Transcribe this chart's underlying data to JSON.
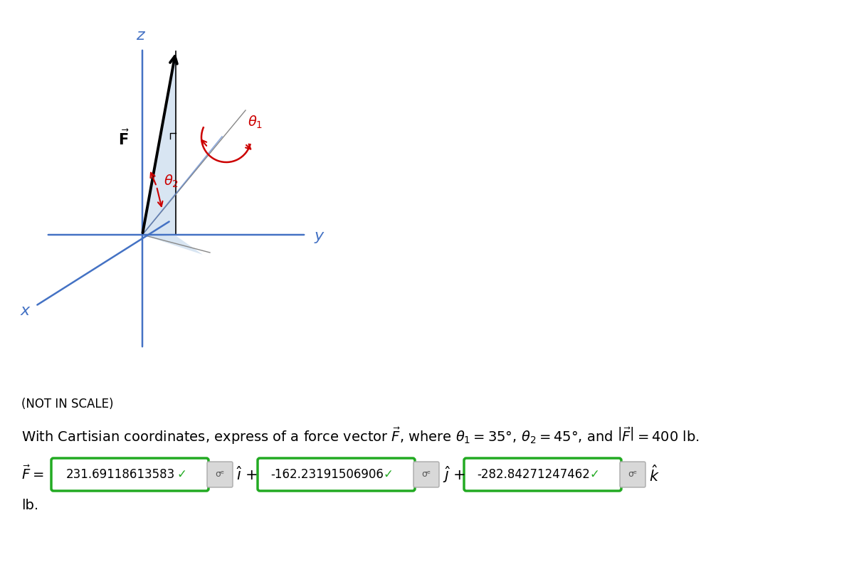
{
  "bg_color": "#ffffff",
  "axis_color": "#4472C4",
  "shade_color": "#b8d0e8",
  "shade_alpha": 0.55,
  "angle_arrow_color": "#cc0000",
  "not_in_scale_text": "(NOT IN SCALE)",
  "theta1_val": 35,
  "theta2_val": 45,
  "F_mag": 400,
  "Fx": "231.69118613583",
  "Fy": "-162.23191506906",
  "Fz": "-282.84271247462",
  "green_border": "#22aa22",
  "gray_btn_color": "#cccccc",
  "gray_btn_face": "#dddddd"
}
